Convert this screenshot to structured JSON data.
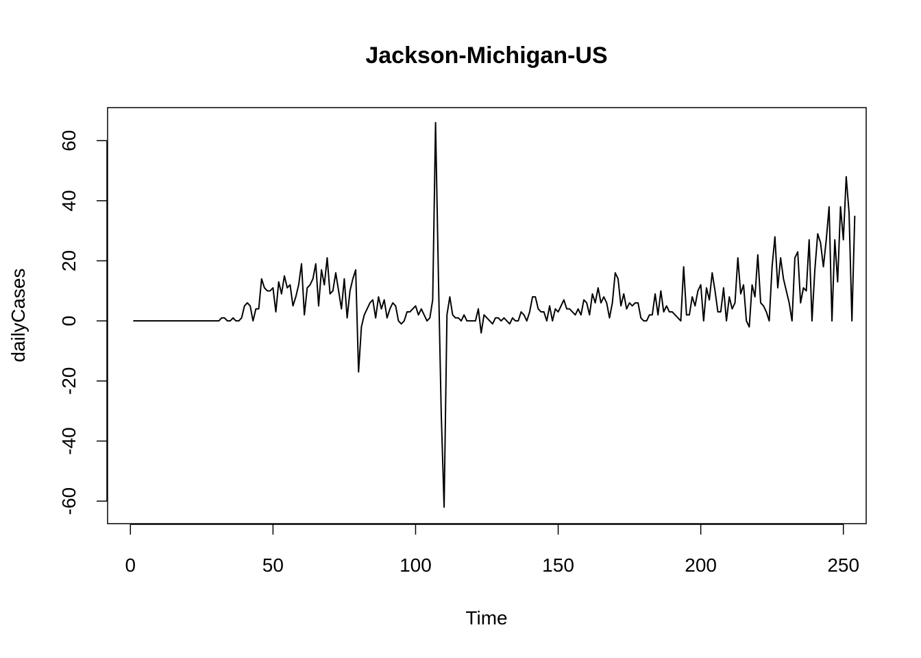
{
  "chart_data": {
    "type": "line",
    "title": "Jackson-Michigan-US",
    "xlabel": "Time",
    "ylabel": "dailyCases",
    "xlim": [
      -8,
      258
    ],
    "ylim": [
      -67.5,
      71
    ],
    "x_ticks": [
      0,
      50,
      100,
      150,
      200,
      250
    ],
    "y_ticks": [
      -60,
      -40,
      -20,
      0,
      20,
      40,
      60
    ],
    "grid": false,
    "legend": "none",
    "colors": {
      "line": "#000000",
      "background": "#ffffff"
    },
    "series": [
      {
        "x_start": 1,
        "values": [
          0,
          0,
          0,
          0,
          0,
          0,
          0,
          0,
          0,
          0,
          0,
          0,
          0,
          0,
          0,
          0,
          0,
          0,
          0,
          0,
          0,
          0,
          0,
          0,
          0,
          0,
          0,
          0,
          0,
          0,
          0,
          1,
          1,
          0,
          0,
          1,
          0,
          0,
          1,
          5,
          6,
          5,
          0,
          4,
          4,
          14,
          11,
          10,
          10,
          11,
          3,
          13,
          9,
          15,
          11,
          12,
          5,
          8,
          12,
          19,
          2,
          11,
          12,
          14,
          19,
          5,
          17,
          12,
          21,
          9,
          10,
          16,
          10,
          4,
          14,
          1,
          10,
          14,
          17,
          -17,
          -2,
          2,
          4,
          6,
          7,
          1,
          8,
          4,
          7,
          1,
          4,
          6,
          5,
          0,
          -1,
          0,
          3,
          3,
          4,
          5,
          2,
          4,
          2,
          0,
          1,
          7,
          66,
          15,
          -31,
          -62,
          2,
          8,
          2,
          1,
          1,
          0,
          2,
          0,
          0,
          0,
          0,
          4,
          -4,
          2,
          1,
          0,
          -1,
          1,
          1,
          0,
          1,
          0,
          -1,
          1,
          0,
          0,
          3,
          2,
          0,
          3,
          8,
          8,
          4,
          3,
          3,
          0,
          5,
          0,
          4,
          3,
          5,
          7,
          4,
          4,
          3,
          2,
          4,
          2,
          7,
          6,
          2,
          9,
          6,
          11,
          6,
          8,
          6,
          1,
          6,
          16,
          14,
          5,
          9,
          4,
          6,
          5,
          6,
          6,
          1,
          0,
          0,
          2,
          2,
          9,
          2,
          10,
          3,
          5,
          3,
          3,
          2,
          1,
          0,
          18,
          2,
          2,
          8,
          5,
          10,
          12,
          0,
          11,
          7,
          16,
          10,
          3,
          3,
          11,
          0,
          8,
          4,
          6,
          21,
          9,
          12,
          0,
          -2,
          12,
          8,
          22,
          6,
          5,
          3,
          0,
          18,
          28,
          11,
          21,
          14,
          10,
          6,
          0,
          21,
          23,
          6,
          11,
          10,
          27,
          0,
          17,
          29,
          26,
          18,
          27,
          38,
          0,
          27,
          13,
          38,
          27,
          48,
          36,
          0,
          35
        ]
      }
    ]
  }
}
